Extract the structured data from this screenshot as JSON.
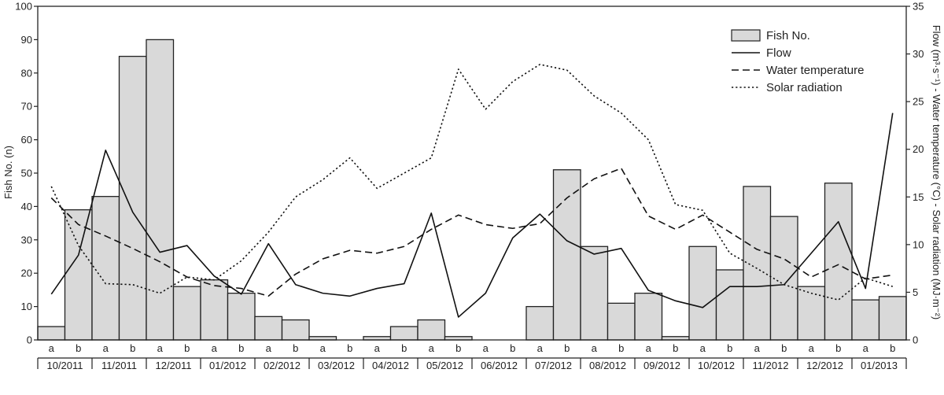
{
  "chart_data": {
    "type": "bar+line",
    "title": "",
    "ylabel_left": "Fish No. (n)",
    "ylabel_right": "Flow (m³·s⁻¹) - Water temperature (°C) - Solar radiation (MJ·m⁻²)",
    "ylim_left": [
      0,
      100
    ],
    "ylim_right": [
      0,
      35
    ],
    "yticks_left": [
      "0",
      "10",
      "20",
      "30",
      "40",
      "50",
      "60",
      "70",
      "80",
      "90",
      "100"
    ],
    "yticks_right": [
      "0",
      "5",
      "10",
      "15",
      "20",
      "25",
      "30",
      "35"
    ],
    "halves": [
      "a",
      "b",
      "a",
      "b",
      "a",
      "b",
      "a",
      "b",
      "a",
      "b",
      "a",
      "b",
      "a",
      "b",
      "a",
      "b",
      "a",
      "b",
      "a",
      "b",
      "a",
      "b",
      "a",
      "b",
      "a",
      "b",
      "a",
      "b",
      "a",
      "b",
      "a",
      "b"
    ],
    "months": [
      "10/2011",
      "11/2011",
      "12/2011",
      "01/2012",
      "02/2012",
      "03/2012",
      "04/2012",
      "05/2012",
      "06/2012",
      "07/2012",
      "08/2012",
      "09/2012",
      "10/2012",
      "11/2012",
      "12/2012",
      "01/2013"
    ],
    "legend_position": "top-right",
    "grid": false,
    "series": [
      {
        "name": "Fish No.",
        "type": "bar",
        "axis": "left",
        "color": "#d9d9d9",
        "values": [
          4,
          39,
          43,
          85,
          90,
          16,
          18,
          14,
          7,
          6,
          1,
          0,
          1,
          4,
          6,
          1,
          0,
          0,
          10,
          51,
          28,
          11,
          14,
          1,
          28,
          21,
          46,
          37,
          16,
          47,
          12,
          13
        ]
      },
      {
        "name": "Flow",
        "type": "line",
        "axis": "right",
        "dash": "solid",
        "values": [
          4.8,
          8.9,
          19.9,
          13.4,
          9.2,
          9.9,
          6.7,
          4.8,
          10.1,
          5.8,
          4.9,
          4.6,
          5.4,
          5.9,
          13.3,
          2.4,
          4.9,
          10.7,
          13.2,
          10.4,
          9.0,
          9.6,
          5.2,
          4.1,
          3.4,
          5.6,
          5.6,
          5.8,
          9.1,
          12.4,
          5.4,
          23.8
        ]
      },
      {
        "name": "Water temperature",
        "type": "line",
        "axis": "right",
        "dash": "dashed",
        "values": [
          14.9,
          12.1,
          10.9,
          9.6,
          8.2,
          6.6,
          5.7,
          5.4,
          4.6,
          6.9,
          8.5,
          9.4,
          9.1,
          9.8,
          11.6,
          13.1,
          12.1,
          11.7,
          12.2,
          14.9,
          16.9,
          18.0,
          13.0,
          11.6,
          13.1,
          11.3,
          9.5,
          8.5,
          6.6,
          7.9,
          6.4,
          6.8
        ]
      },
      {
        "name": "Solar radiation",
        "type": "line",
        "axis": "right",
        "dash": "dotted",
        "values": [
          16.1,
          9.9,
          5.9,
          5.8,
          4.9,
          6.6,
          6.3,
          8.3,
          11.3,
          15.0,
          16.8,
          19.1,
          15.9,
          17.5,
          19.1,
          28.4,
          24.2,
          27.1,
          28.9,
          28.3,
          25.6,
          23.8,
          21.0,
          14.2,
          13.6,
          9.1,
          7.5,
          5.8,
          4.9,
          4.2,
          6.5,
          5.6
        ]
      }
    ]
  }
}
